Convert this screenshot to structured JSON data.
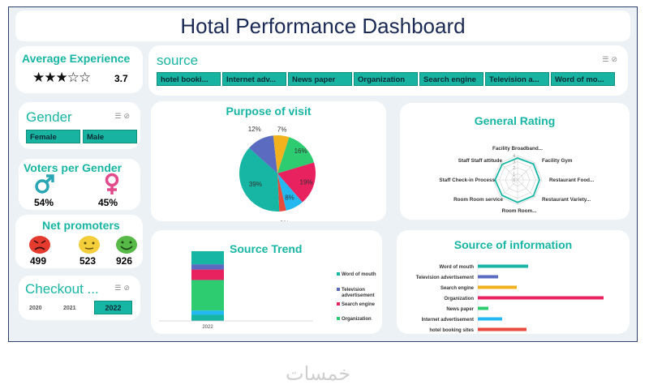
{
  "title": "Hotal Performance Dashboard",
  "avg_experience": {
    "label": "Average Experience",
    "value": "3.7",
    "stars_filled": 3,
    "stars_total": 5
  },
  "gender": {
    "label": "Gender",
    "options": [
      "Female",
      "Male"
    ]
  },
  "voters": {
    "label": "Voters per Gender",
    "male_pct": "54%",
    "female_pct": "45%",
    "male_color": "#2aa6b5",
    "female_color": "#e24a8c"
  },
  "net_promoters": {
    "label": "Net promoters",
    "detractors": "499",
    "passives": "523",
    "promoters": "926",
    "icons": [
      "angry-face-icon",
      "neutral-face-icon",
      "smile-face-icon"
    ]
  },
  "checkout": {
    "label": "Checkout ...",
    "years": [
      "2020",
      "2021",
      "2022"
    ],
    "selected": "2022"
  },
  "source_slicer": {
    "label": "source",
    "options": [
      "hotel booki...",
      "Internet adv...",
      "News paper",
      "Organization",
      "Search engine",
      "Television a...",
      "Word of mo..."
    ]
  },
  "purpose_chart": {
    "title": "Purpose of visit",
    "chart_data": {
      "type": "pie",
      "values": [
        39,
        12,
        7,
        16,
        19,
        8,
        3
      ],
      "labels": [
        "39%",
        "12%",
        "7%",
        "16%",
        "19%",
        "8%",
        "3%"
      ],
      "colors": [
        "#17b5a3",
        "#5b6cc0",
        "#f2b21e",
        "#2ecc71",
        "#e8215f",
        "#23b8f0",
        "#e84a3b"
      ]
    }
  },
  "rating_chart": {
    "title": "General Rating",
    "chart_data": {
      "type": "radar",
      "categories": [
        "Facility Broadband...",
        "Facility Gym",
        "Restaurant Food...",
        "Restaurant Variety...",
        "Room Room...",
        "Room Room service",
        "Staff Check-in Process",
        "Staff Staff attitude"
      ],
      "values": [
        3.6,
        3.7,
        3.6,
        3.7,
        3.7,
        3.6,
        3.7,
        3.6
      ],
      "ticks": [
        "4",
        "3",
        "2",
        "1",
        "0"
      ],
      "ylim": [
        0,
        4
      ]
    }
  },
  "trend_chart": {
    "title": "Source Trend",
    "chart_data": {
      "type": "bar",
      "stacked": true,
      "categories": [
        "2022"
      ],
      "series": [
        {
          "name": "Word of mouth",
          "value": 15,
          "color": "#17b5a3"
        },
        {
          "name": "Television advertisement",
          "value": 6,
          "color": "#5b6cc0"
        },
        {
          "name": "Search engine",
          "value": 12,
          "color": "#e8215f"
        },
        {
          "name": "Organization",
          "value": 35,
          "color": "#2ecc71"
        },
        {
          "name": "",
          "value": 5,
          "color": "#23b8f0"
        },
        {
          "name": "",
          "value": 7,
          "color": "#17b5a3"
        }
      ],
      "legend": [
        "Word of mouth",
        "Television advertisement",
        "Search engine",
        "Organization"
      ]
    }
  },
  "info_chart": {
    "title": "Source of information",
    "chart_data": {
      "type": "bar",
      "orientation": "horizontal",
      "categories": [
        "Word of mouth",
        "Television advertisement",
        "Search engine",
        "Organization",
        "News paper",
        "Internet advertisement",
        "hotel booking sites"
      ],
      "values": [
        62,
        25,
        48,
        155,
        13,
        30,
        60
      ],
      "colors": [
        "#17b5a3",
        "#5b6cc0",
        "#f2b21e",
        "#e8215f",
        "#2ecc71",
        "#23b8f0",
        "#e84a3b"
      ]
    }
  },
  "footer_logo": "خمسات"
}
